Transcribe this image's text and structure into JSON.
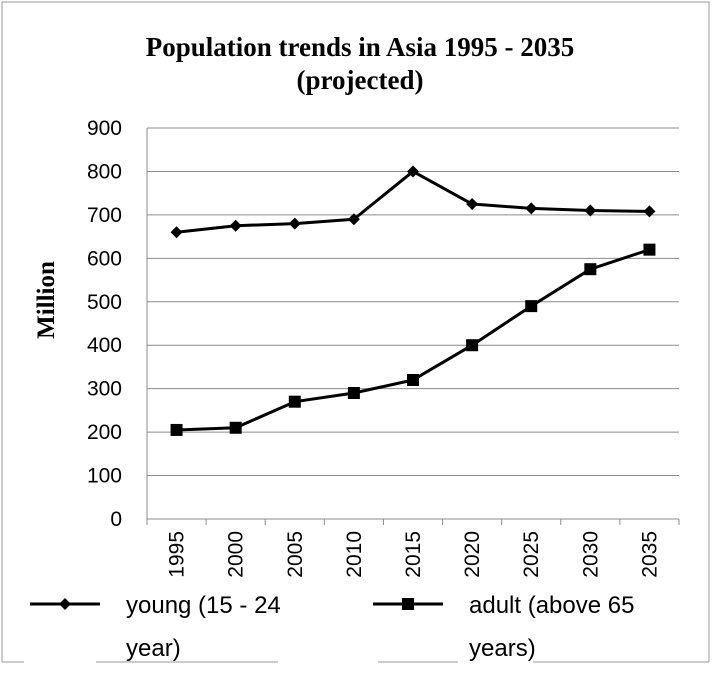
{
  "chart_data": {
    "type": "line",
    "title": [
      "Population trends in Asia 1995 - 2035",
      "(projected)"
    ],
    "ylabel": "Million",
    "xlabel": "",
    "categories": [
      "1995",
      "2000",
      "2005",
      "2010",
      "2015",
      "2020",
      "2025",
      "2030",
      "2035"
    ],
    "ylim": [
      0,
      900
    ],
    "yticks": [
      "0",
      "100",
      "200",
      "300",
      "400",
      "500",
      "600",
      "700",
      "800",
      "900"
    ],
    "grid": true,
    "legend_position": "bottom",
    "series": [
      {
        "name": "young (15 - 24 year)",
        "legend_lines": [
          "young (15 - 24",
          "year)"
        ],
        "marker": "diamond",
        "color": "#000000",
        "values": [
          660,
          675,
          680,
          690,
          800,
          725,
          715,
          710,
          708
        ]
      },
      {
        "name": "adult (above 65 years)",
        "legend_lines": [
          "adult (above 65",
          "years)"
        ],
        "marker": "square",
        "color": "#000000",
        "values": [
          205,
          210,
          270,
          290,
          320,
          400,
          490,
          575,
          620
        ]
      }
    ]
  }
}
